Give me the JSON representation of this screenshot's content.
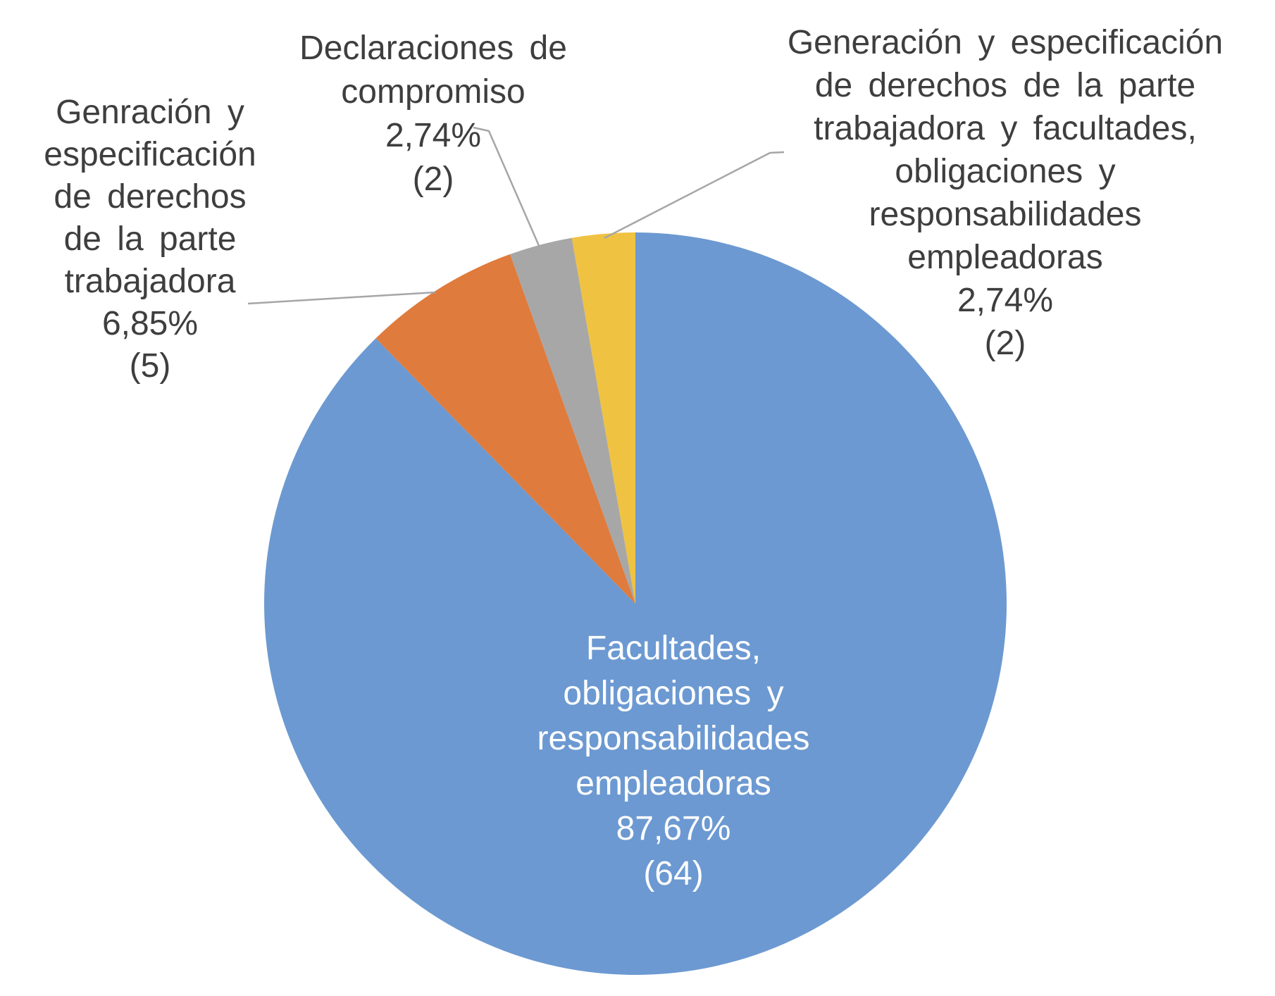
{
  "chart_data": {
    "type": "pie",
    "title": "",
    "start_angle_deg": 0,
    "direction": "clockwise",
    "total": 73,
    "legend": "none",
    "slices": [
      {
        "name": "Facultades, obligaciones y responsabilidades empleadoras",
        "value": 64,
        "pct": 87.67,
        "pct_label": "87,67%",
        "count_label": "(64)",
        "color": "#6C99D1"
      },
      {
        "name": "Genración y especificación de derechos de la parte trabajadora",
        "value": 5,
        "pct": 6.85,
        "pct_label": "6,85%",
        "count_label": "(5)",
        "color": "#DF7B3D"
      },
      {
        "name": "Declaraciones de compromiso",
        "value": 2,
        "pct": 2.74,
        "pct_label": "2,74%",
        "count_label": "(2)",
        "color": "#A7A7A7"
      },
      {
        "name": "Generación y especificación de derechos de la parte trabajadora y facultades, obligaciones y responsabilidades empleadoras",
        "value": 2,
        "pct": 2.74,
        "pct_label": "2,74%",
        "count_label": "(2)",
        "color": "#EFC242"
      }
    ]
  },
  "callouts": {
    "inside": {
      "lines": [
        "Facultades,",
        "obligaciones y",
        "responsabilidades",
        "empleadoras",
        "87,67%",
        "(64)"
      ],
      "text_color": "#FFFFFF"
    },
    "left": {
      "lines": [
        "Genración y",
        "especificación",
        "de derechos",
        "de la parte",
        "trabajadora",
        "6,85%",
        "(5)"
      ],
      "text_color": "#3E3E3E"
    },
    "top": {
      "lines": [
        "Declaraciones de",
        "compromiso",
        "2,74%",
        "(2)"
      ],
      "text_color": "#3E3E3E"
    },
    "right": {
      "lines": [
        "Generación y especificación",
        "de derechos de la parte",
        "trabajadora y facultades,",
        "obligaciones y",
        "responsabilidades",
        "empleadoras",
        "2,74%",
        "(2)"
      ],
      "text_color": "#3E3E3E"
    }
  },
  "styles": {
    "background": "#FFFFFF",
    "leader_line_color": "#A6A6A6",
    "label_text_color": "#3E3E3E",
    "inside_label_text_color": "#FFFFFF"
  }
}
